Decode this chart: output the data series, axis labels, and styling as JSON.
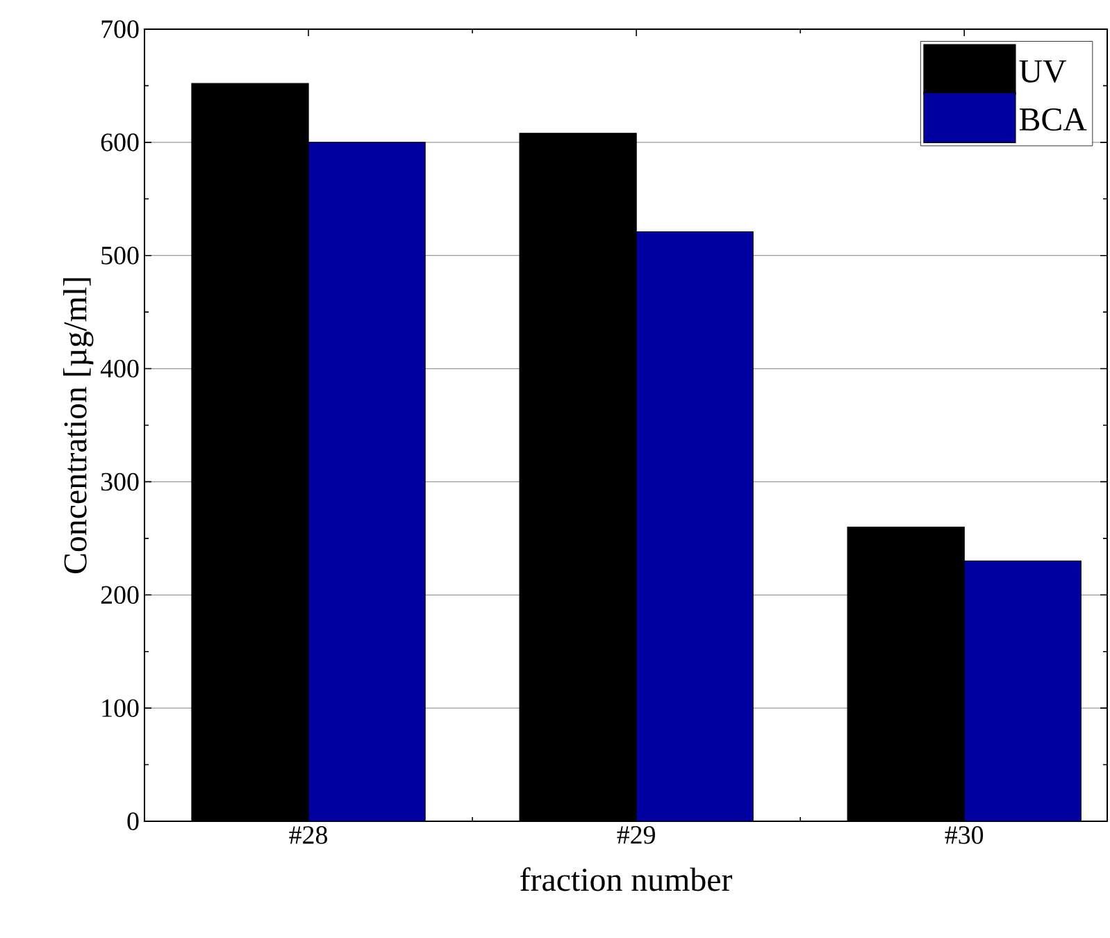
{
  "chart_data": {
    "type": "bar",
    "xlabel": "fraction number",
    "ylabel": "Concentration [µg/ml]",
    "categories": [
      "#28",
      "#29",
      "#30"
    ],
    "series": [
      {
        "name": "UV",
        "color": "#000000",
        "values": [
          652,
          608,
          260
        ]
      },
      {
        "name": "BCA",
        "color": "#0000a0",
        "values": [
          600,
          521,
          230
        ]
      }
    ],
    "ylim": [
      0,
      700
    ],
    "yticks": [
      0,
      100,
      200,
      300,
      400,
      500,
      600,
      700
    ],
    "grid": "y",
    "legend": "top right"
  }
}
